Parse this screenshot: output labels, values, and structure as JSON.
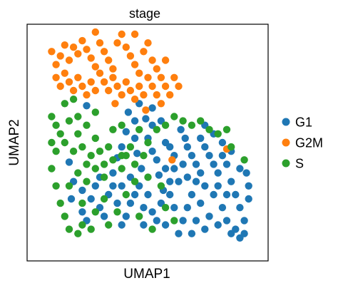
{
  "chart_data": {
    "type": "scatter",
    "title": "stage",
    "xlabel": "UMAP1",
    "ylabel": "UMAP2",
    "xticks": [],
    "yticks": [],
    "xlim": [
      0,
      100
    ],
    "ylim": [
      0,
      100
    ],
    "grid": false,
    "legend_position": "right",
    "series": [
      {
        "name": "G1",
        "color": "#1f77b4",
        "points": [
          [
            22,
            67
          ],
          [
            14,
            41
          ],
          [
            16,
            32
          ],
          [
            15,
            24
          ],
          [
            20,
            28
          ],
          [
            36,
            43
          ],
          [
            38,
            48
          ],
          [
            40,
            55
          ],
          [
            44,
            52
          ],
          [
            45,
            45
          ],
          [
            47,
            38
          ],
          [
            50,
            52
          ],
          [
            52,
            46
          ],
          [
            54,
            42
          ],
          [
            55,
            35
          ],
          [
            57,
            28
          ],
          [
            58,
            50
          ],
          [
            60,
            48
          ],
          [
            62,
            44
          ],
          [
            62,
            38
          ],
          [
            65,
            56
          ],
          [
            67,
            52
          ],
          [
            68,
            48
          ],
          [
            70,
            44
          ],
          [
            72,
            40
          ],
          [
            74,
            52
          ],
          [
            76,
            48
          ],
          [
            78,
            44
          ],
          [
            80,
            40
          ],
          [
            82,
            36
          ],
          [
            84,
            44
          ],
          [
            86,
            40
          ],
          [
            88,
            32
          ],
          [
            90,
            26
          ],
          [
            92,
            20
          ],
          [
            94,
            14
          ],
          [
            96,
            24
          ],
          [
            95,
            36
          ],
          [
            92,
            38
          ],
          [
            88,
            46
          ],
          [
            84,
            50
          ],
          [
            80,
            54
          ],
          [
            76,
            58
          ],
          [
            72,
            32
          ],
          [
            70,
            26
          ],
          [
            68,
            20
          ],
          [
            66,
            14
          ],
          [
            62,
            20
          ],
          [
            60,
            26
          ],
          [
            56,
            22
          ],
          [
            54,
            14
          ],
          [
            52,
            18
          ],
          [
            50,
            26
          ],
          [
            48,
            20
          ],
          [
            46,
            30
          ],
          [
            44,
            26
          ],
          [
            42,
            22
          ],
          [
            40,
            16
          ],
          [
            38,
            12
          ],
          [
            36,
            22
          ],
          [
            34,
            30
          ],
          [
            32,
            26
          ],
          [
            30,
            16
          ],
          [
            28,
            20
          ],
          [
            26,
            30
          ],
          [
            24,
            24
          ],
          [
            22,
            14
          ],
          [
            20,
            18
          ],
          [
            48,
            12
          ],
          [
            58,
            12
          ],
          [
            64,
            8
          ],
          [
            70,
            8
          ],
          [
            76,
            10
          ],
          [
            78,
            16
          ],
          [
            82,
            12
          ],
          [
            84,
            20
          ],
          [
            86,
            14
          ],
          [
            88,
            8
          ],
          [
            90,
            10
          ],
          [
            92,
            6
          ],
          [
            94,
            8
          ],
          [
            80,
            26
          ],
          [
            74,
            22
          ],
          [
            72,
            14
          ],
          [
            56,
            60
          ],
          [
            52,
            58
          ],
          [
            44,
            60
          ],
          [
            34,
            36
          ],
          [
            64,
            32
          ],
          [
            60,
            32
          ],
          [
            66,
            40
          ],
          [
            96,
            30
          ],
          [
            28,
            34
          ],
          [
            38,
            30
          ],
          [
            42,
            34
          ],
          [
            52,
            66
          ],
          [
            46,
            68
          ],
          [
            86,
            26
          ],
          [
            76,
            30
          ],
          [
            82,
            30
          ],
          [
            74,
            36
          ],
          [
            68,
            34
          ],
          [
            58,
            38
          ],
          [
            49,
            61
          ],
          [
            41,
            64
          ]
        ]
      },
      {
        "name": "G2M",
        "color": "#ff7f0e",
        "points": [
          [
            6,
            92
          ],
          [
            8,
            86
          ],
          [
            10,
            90
          ],
          [
            12,
            95
          ],
          [
            14,
            88
          ],
          [
            16,
            94
          ],
          [
            18,
            91
          ],
          [
            20,
            97
          ],
          [
            22,
            93
          ],
          [
            24,
            89
          ],
          [
            26,
            85
          ],
          [
            28,
            96
          ],
          [
            30,
            92
          ],
          [
            32,
            88
          ],
          [
            34,
            84
          ],
          [
            36,
            96
          ],
          [
            38,
            100
          ],
          [
            40,
            94
          ],
          [
            42,
            90
          ],
          [
            44,
            86
          ],
          [
            46,
            82
          ],
          [
            48,
            92
          ],
          [
            50,
            96
          ],
          [
            52,
            88
          ],
          [
            54,
            84
          ],
          [
            56,
            80
          ],
          [
            58,
            76
          ],
          [
            60,
            72
          ],
          [
            8,
            80
          ],
          [
            10,
            76
          ],
          [
            12,
            82
          ],
          [
            14,
            78
          ],
          [
            16,
            74
          ],
          [
            18,
            80
          ],
          [
            20,
            76
          ],
          [
            22,
            72
          ],
          [
            24,
            78
          ],
          [
            26,
            74
          ],
          [
            28,
            82
          ],
          [
            30,
            78
          ],
          [
            32,
            74
          ],
          [
            34,
            80
          ],
          [
            36,
            76
          ],
          [
            38,
            72
          ],
          [
            40,
            78
          ],
          [
            42,
            74
          ],
          [
            44,
            70
          ],
          [
            46,
            76
          ],
          [
            48,
            72
          ],
          [
            50,
            80
          ],
          [
            52,
            76
          ],
          [
            54,
            72
          ],
          [
            56,
            68
          ],
          [
            58,
            88
          ],
          [
            44,
            100
          ],
          [
            26,
            101
          ],
          [
            62,
            80
          ],
          [
            64,
            76
          ],
          [
            35,
            68
          ],
          [
            49,
            65
          ],
          [
            86,
            47
          ],
          [
            61,
            42
          ]
        ]
      },
      {
        "name": "S",
        "color": "#2ca02c",
        "points": [
          [
            6,
            62
          ],
          [
            10,
            54
          ],
          [
            8,
            46
          ],
          [
            6,
            38
          ],
          [
            8,
            30
          ],
          [
            10,
            22
          ],
          [
            12,
            16
          ],
          [
            14,
            10
          ],
          [
            18,
            8
          ],
          [
            20,
            12
          ],
          [
            24,
            10
          ],
          [
            12,
            50
          ],
          [
            16,
            46
          ],
          [
            18,
            54
          ],
          [
            20,
            48
          ],
          [
            22,
            40
          ],
          [
            24,
            44
          ],
          [
            26,
            52
          ],
          [
            28,
            46
          ],
          [
            30,
            40
          ],
          [
            32,
            48
          ],
          [
            34,
            56
          ],
          [
            18,
            62
          ],
          [
            22,
            58
          ],
          [
            26,
            64
          ],
          [
            12,
            68
          ],
          [
            16,
            70
          ],
          [
            14,
            60
          ],
          [
            8,
            58
          ],
          [
            18,
            36
          ],
          [
            22,
            32
          ],
          [
            26,
            38
          ],
          [
            30,
            34
          ],
          [
            34,
            42
          ],
          [
            38,
            38
          ],
          [
            40,
            44
          ],
          [
            42,
            48
          ],
          [
            44,
            40
          ],
          [
            38,
            58
          ],
          [
            46,
            56
          ],
          [
            50,
            50
          ],
          [
            54,
            56
          ],
          [
            58,
            58
          ],
          [
            62,
            62
          ],
          [
            66,
            60
          ],
          [
            70,
            58
          ],
          [
            74,
            60
          ],
          [
            78,
            56
          ],
          [
            82,
            54
          ],
          [
            86,
            56
          ],
          [
            88,
            48
          ],
          [
            94,
            42
          ],
          [
            58,
            20
          ],
          [
            62,
            14
          ],
          [
            56,
            30
          ],
          [
            50,
            34
          ],
          [
            48,
            44
          ],
          [
            44,
            32
          ],
          [
            40,
            26
          ],
          [
            36,
            18
          ],
          [
            30,
            24
          ],
          [
            26,
            18
          ],
          [
            32,
            12
          ],
          [
            38,
            44
          ],
          [
            14,
            30
          ],
          [
            6,
            50
          ],
          [
            20,
            22
          ],
          [
            46,
            16
          ],
          [
            52,
            10
          ]
        ]
      }
    ]
  }
}
